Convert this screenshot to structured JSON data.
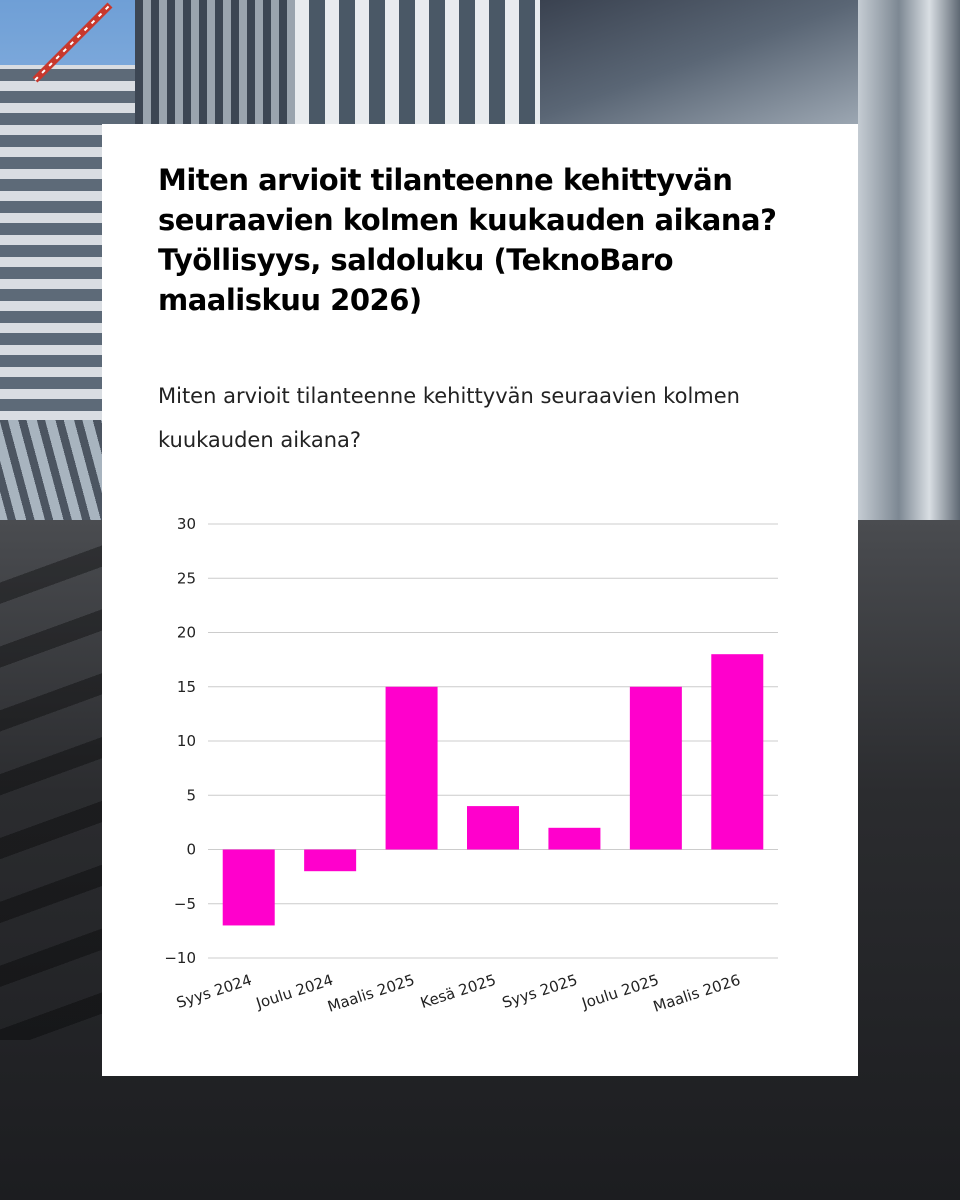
{
  "card": {
    "title": "Miten arvioit tilanteenne kehittyvän seuraavien kolmen kuukauden aikana? Työllisyys, saldoluku (TeknoBaro maaliskuu 2026)",
    "subtitle": "Miten arvioit tilanteenne kehittyvän seuraavien kolmen kuukauden aikana?"
  },
  "colors": {
    "bar": "#ff00cc",
    "grid": "#cccccc",
    "card_background": "#ffffff"
  },
  "chart_data": {
    "type": "bar",
    "categories": [
      "Syys 2024",
      "Joulu 2024",
      "Maalis 2025",
      "Kesä 2025",
      "Syys 2025",
      "Joulu 2025",
      "Maalis 2026"
    ],
    "values": [
      -7,
      -2,
      15,
      4,
      2,
      15,
      18
    ],
    "ylim": [
      -10,
      30
    ],
    "yticks": [
      30,
      25,
      20,
      15,
      10,
      5,
      0,
      -5,
      -10
    ],
    "ytick_labels": [
      "30",
      "25",
      "20",
      "15",
      "10",
      "5",
      "0",
      "−5",
      "−10"
    ],
    "grid": true,
    "legend": "none",
    "x_tick_rotation": "angled"
  }
}
